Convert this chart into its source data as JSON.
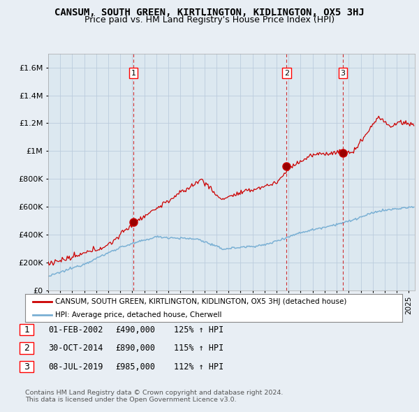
{
  "title": "CANSUM, SOUTH GREEN, KIRTLINGTON, KIDLINGTON, OX5 3HJ",
  "subtitle": "Price paid vs. HM Land Registry's House Price Index (HPI)",
  "ytick_values": [
    0,
    200000,
    400000,
    600000,
    800000,
    1000000,
    1200000,
    1400000,
    1600000
  ],
  "ylim": [
    0,
    1700000
  ],
  "xlim_start": 1995.0,
  "xlim_end": 2025.5,
  "red_line_color": "#cc0000",
  "blue_line_color": "#7ab0d4",
  "grid_color": "#bbccdd",
  "bg_color": "#e8eef4",
  "plot_bg_color": "#dce8f0",
  "sale_dates": [
    2002.08,
    2014.83,
    2019.52
  ],
  "sale_prices": [
    490000,
    890000,
    985000
  ],
  "sale_labels": [
    "1",
    "2",
    "3"
  ],
  "dashed_line_color": "#cc0000",
  "legend_label_red": "CANSUM, SOUTH GREEN, KIRTLINGTON, KIDLINGTON, OX5 3HJ (detached house)",
  "legend_label_blue": "HPI: Average price, detached house, Cherwell",
  "table_data": [
    [
      "1",
      "01-FEB-2002",
      "£490,000",
      "125% ↑ HPI"
    ],
    [
      "2",
      "30-OCT-2014",
      "£890,000",
      "115% ↑ HPI"
    ],
    [
      "3",
      "08-JUL-2019",
      "£985,000",
      "112% ↑ HPI"
    ]
  ],
  "footer_text": "Contains HM Land Registry data © Crown copyright and database right 2024.\nThis data is licensed under the Open Government Licence v3.0.",
  "title_fontsize": 10,
  "subtitle_fontsize": 9
}
